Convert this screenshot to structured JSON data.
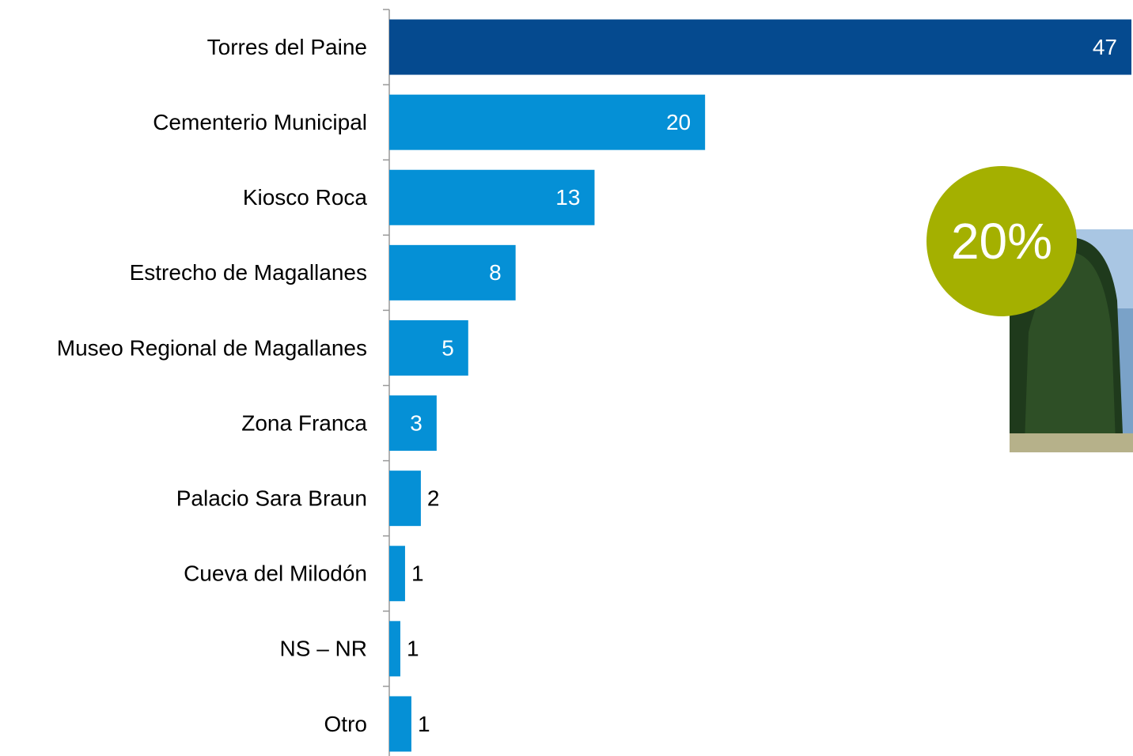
{
  "chart_data": {
    "type": "hbar",
    "categories": [
      "Torres del Paine",
      "Cementerio Municipal",
      "Kiosco Roca",
      "Estrecho de Magallanes",
      "Museo Regional de Magallanes",
      "Zona Franca",
      "Palacio Sara Braun",
      "Cueva del Milodón",
      "NS – NR",
      "Otro"
    ],
    "values": [
      47,
      20,
      13,
      8,
      5,
      3,
      2,
      1,
      0.7,
      1.4
    ],
    "value_labels": [
      "47",
      "20",
      "13",
      "8",
      "5",
      "3",
      "2",
      "1",
      "1",
      "1"
    ],
    "colors": [
      "#054a8f",
      "#0590d6",
      "#0590d6",
      "#0590d6",
      "#0590d6",
      "#0590d6",
      "#0590d6",
      "#0590d6",
      "#0590d6",
      "#0590d6"
    ],
    "xlim": [
      0,
      47
    ],
    "annotation": "20%"
  }
}
